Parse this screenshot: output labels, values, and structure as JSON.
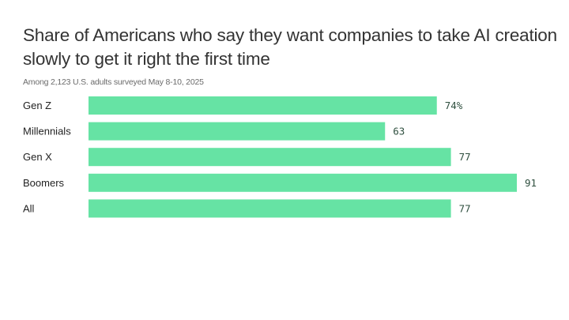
{
  "chart_data": {
    "type": "bar",
    "orientation": "horizontal",
    "title": "Share of Americans who say they want companies to take AI creation slowly to get it right the first time",
    "subtitle": "Among 2,123 U.S. adults surveyed May 8-10, 2025",
    "categories": [
      "Gen Z",
      "Millennials",
      "Gen X",
      "Boomers",
      "All"
    ],
    "values": [
      74,
      63,
      77,
      91,
      77
    ],
    "value_labels": [
      "74%",
      "63",
      "77",
      "91",
      "77"
    ],
    "unit": "%",
    "xlim": [
      0,
      91
    ],
    "grid": false,
    "legend": "none",
    "bar_color": "#66e3a4"
  }
}
